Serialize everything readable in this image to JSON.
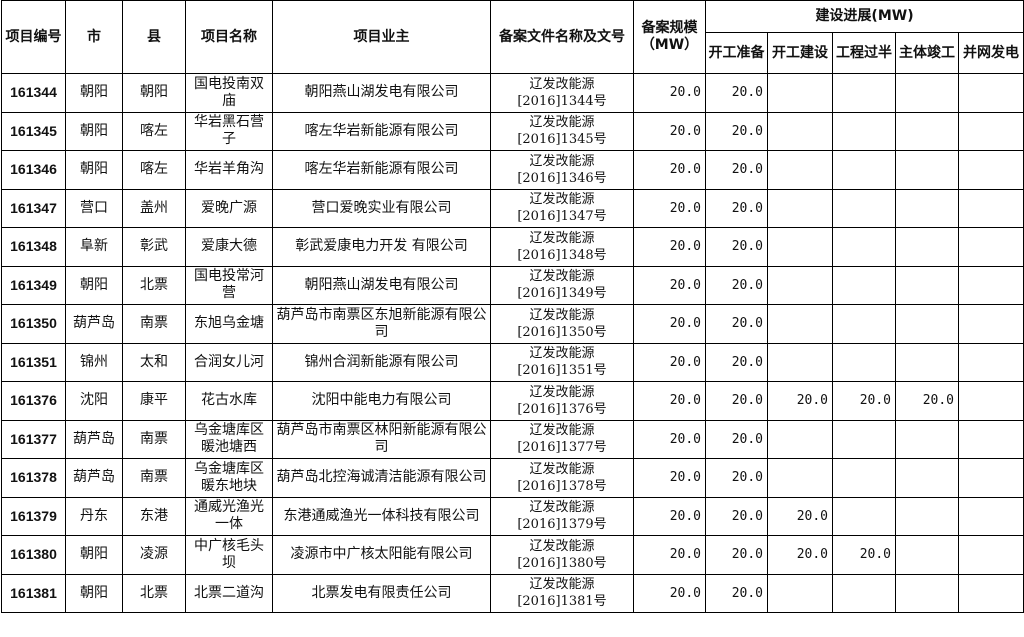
{
  "headers": {
    "id": "项目编号",
    "city": "市",
    "county": "县",
    "name": "项目名称",
    "owner": "项目业主",
    "doc": "备案文件名称及文号",
    "scale": "备案规模（MW）",
    "progress": "建设进展(MW)",
    "sub": [
      "开工准备",
      "开工建设",
      "工程过半",
      "主体竣工",
      "并网发电"
    ]
  },
  "rows": [
    {
      "id": "161344",
      "city": "朝阳",
      "county": "朝阳",
      "name": "国电投南双庙",
      "owner": "朝阳燕山湖发电有限公司",
      "doc": "辽发改能源[2016]1344号",
      "scale": "20.0",
      "p": [
        "20.0",
        "",
        "",
        "",
        ""
      ]
    },
    {
      "id": "161345",
      "city": "朝阳",
      "county": "喀左",
      "name": "华岩黑石营子",
      "owner": "喀左华岩新能源有限公司",
      "doc": "辽发改能源[2016]1345号",
      "scale": "20.0",
      "p": [
        "20.0",
        "",
        "",
        "",
        ""
      ]
    },
    {
      "id": "161346",
      "city": "朝阳",
      "county": "喀左",
      "name": "华岩羊角沟",
      "owner": "喀左华岩新能源有限公司",
      "doc": "辽发改能源[2016]1346号",
      "scale": "20.0",
      "p": [
        "20.0",
        "",
        "",
        "",
        ""
      ]
    },
    {
      "id": "161347",
      "city": "营口",
      "county": "盖州",
      "name": "爱晚广源",
      "owner": "营口爱晚实业有限公司",
      "doc": "辽发改能源[2016]1347号",
      "scale": "20.0",
      "p": [
        "20.0",
        "",
        "",
        "",
        ""
      ]
    },
    {
      "id": "161348",
      "city": "阜新",
      "county": "彰武",
      "name": "爱康大德",
      "owner": "彰武爱康电力开发 有限公司",
      "doc": "辽发改能源[2016]1348号",
      "scale": "20.0",
      "p": [
        "20.0",
        "",
        "",
        "",
        ""
      ]
    },
    {
      "id": "161349",
      "city": "朝阳",
      "county": "北票",
      "name": "国电投常河营",
      "owner": "朝阳燕山湖发电有限公司",
      "doc": "辽发改能源[2016]1349号",
      "scale": "20.0",
      "p": [
        "20.0",
        "",
        "",
        "",
        ""
      ]
    },
    {
      "id": "161350",
      "city": "葫芦岛",
      "county": "南票",
      "name": "东旭乌金塘",
      "owner": "葫芦岛市南票区东旭新能源有限公司",
      "doc": "辽发改能源[2016]1350号",
      "scale": "20.0",
      "p": [
        "20.0",
        "",
        "",
        "",
        ""
      ]
    },
    {
      "id": "161351",
      "city": "锦州",
      "county": "太和",
      "name": "合润女儿河",
      "owner": "锦州合润新能源有限公司",
      "doc": "辽发改能源[2016]1351号",
      "scale": "20.0",
      "p": [
        "20.0",
        "",
        "",
        "",
        ""
      ]
    },
    {
      "id": "161376",
      "city": "沈阳",
      "county": "康平",
      "name": "花古水库",
      "owner": "沈阳中能电力有限公司",
      "doc": "辽发改能源[2016]1376号",
      "scale": "20.0",
      "p": [
        "20.0",
        "20.0",
        "20.0",
        "20.0",
        ""
      ]
    },
    {
      "id": "161377",
      "city": "葫芦岛",
      "county": "南票",
      "name": "乌金塘库区暖池塘西",
      "owner": "葫芦岛市南票区林阳新能源有限公司",
      "doc": "辽发改能源[2016]1377号",
      "scale": "20.0",
      "p": [
        "20.0",
        "",
        "",
        "",
        ""
      ]
    },
    {
      "id": "161378",
      "city": "葫芦岛",
      "county": "南票",
      "name": "乌金塘库区暖东地块",
      "owner": "葫芦岛北控海诚清洁能源有限公司",
      "doc": "辽发改能源[2016]1378号",
      "scale": "20.0",
      "p": [
        "20.0",
        "",
        "",
        "",
        ""
      ]
    },
    {
      "id": "161379",
      "city": "丹东",
      "county": "东港",
      "name": "通威光渔光一体",
      "owner": "东港通威渔光一体科技有限公司",
      "doc": "辽发改能源[2016]1379号",
      "scale": "20.0",
      "p": [
        "20.0",
        "20.0",
        "",
        "",
        ""
      ]
    },
    {
      "id": "161380",
      "city": "朝阳",
      "county": "凌源",
      "name": "中广核毛头坝",
      "owner": "凌源市中广核太阳能有限公司",
      "doc": "辽发改能源[2016]1380号",
      "scale": "20.0",
      "p": [
        "20.0",
        "20.0",
        "20.0",
        "",
        ""
      ]
    },
    {
      "id": "161381",
      "city": "朝阳",
      "county": "北票",
      "name": "北票二道沟",
      "owner": "北票发电有限责任公司",
      "doc": "辽发改能源[2016]1381号",
      "scale": "20.0",
      "p": [
        "20.0",
        "",
        "",
        "",
        ""
      ]
    }
  ]
}
